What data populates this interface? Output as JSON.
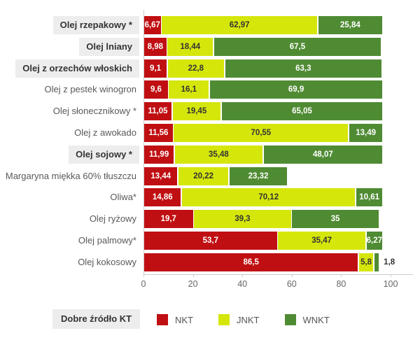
{
  "chart_data": {
    "type": "bar",
    "orientation": "horizontal",
    "stacked": true,
    "title": "",
    "xlabel": "",
    "ylabel": "",
    "xlim": [
      0,
      100
    ],
    "x_ticks": [
      0,
      20,
      40,
      60,
      80,
      100
    ],
    "grid": false,
    "legend_position": "bottom",
    "number_format": "comma-decimal",
    "categories": [
      "Olej rzepakowy *",
      "Olej lniany",
      "Olej z orzechów włoskich",
      "Olej z pestek winogron",
      "Olej słonecznikowy *",
      "Olej z awokado",
      "Olej sojowy *",
      "Margaryna miękka 60% tłuszczu",
      "Oliwa*",
      "Olej ryżowy",
      "Olej palmowy*",
      "Olej kokosowy"
    ],
    "highlighted_categories": [
      true,
      true,
      true,
      false,
      false,
      false,
      true,
      false,
      false,
      false,
      false,
      false
    ],
    "series": [
      {
        "name": "NKT",
        "color": "#c00f12",
        "text_color": "#ffffff",
        "values": [
          6.67,
          8.98,
          9.1,
          9.6,
          11.05,
          11.56,
          11.99,
          13.44,
          14.86,
          19.7,
          53.7,
          86.5
        ]
      },
      {
        "name": "JNKT",
        "color": "#d5e60b",
        "text_color": "#333333",
        "values": [
          62.97,
          18.44,
          22.8,
          16.1,
          19.45,
          70.55,
          35.48,
          20.22,
          70.12,
          39.3,
          35.47,
          5.8
        ]
      },
      {
        "name": "WNKT",
        "color": "#4f8b33",
        "text_color": "#ffffff",
        "values": [
          25.84,
          67.5,
          63.3,
          69.9,
          65.05,
          13.49,
          48.07,
          23.32,
          10.61,
          35,
          6.27,
          1.8
        ]
      }
    ]
  },
  "legend": {
    "highlight_label": "Dobre źródło KT"
  },
  "colors": {
    "background": "#ffffff",
    "axis": "#cccccc",
    "tick_label": "#666666",
    "category_label": "#595959",
    "highlight_bg": "#ededed",
    "highlight_text": "#333333"
  }
}
